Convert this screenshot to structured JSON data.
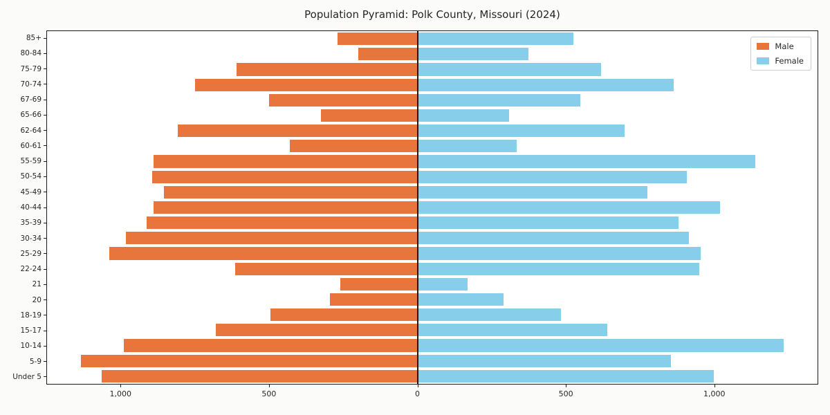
{
  "title": "Population Pyramid: Polk County, Missouri (2024)",
  "legend": {
    "male_label": "Male",
    "female_label": "Female",
    "position": "upper right"
  },
  "colors": {
    "male": "#e8763c",
    "female": "#87ceeb",
    "axis": "#1a1a1a",
    "plot_background": "#ffffff",
    "figure_background": "#fbfbfa"
  },
  "chart_data": {
    "type": "bar",
    "subtype": "population-pyramid-horizontal",
    "title": "Population Pyramid: Polk County, Missouri (2024)",
    "xlabel": "",
    "ylabel": "",
    "grid": false,
    "legend_position": "upper right",
    "categories_bottom_to_top": [
      "Under 5",
      "5-9",
      "10-14",
      "15-17",
      "18-19",
      "20",
      "21",
      "22-24",
      "25-29",
      "30-34",
      "35-39",
      "40-44",
      "45-49",
      "50-54",
      "55-59",
      "60-61",
      "62-64",
      "65-66",
      "67-69",
      "70-74",
      "75-79",
      "80-84",
      "85+"
    ],
    "series": [
      {
        "name": "Male",
        "direction": "left",
        "values": [
          1065,
          1135,
          990,
          680,
          495,
          295,
          260,
          615,
          1040,
          985,
          915,
          890,
          855,
          895,
          890,
          430,
          810,
          325,
          500,
          750,
          610,
          200,
          270
        ]
      },
      {
        "name": "Female",
        "direction": "right",
        "values": [
          1000,
          855,
          1235,
          640,
          485,
          290,
          170,
          950,
          955,
          915,
          880,
          1020,
          775,
          910,
          1140,
          335,
          700,
          310,
          550,
          865,
          620,
          375,
          525
        ]
      }
    ],
    "xlim": [
      -1250,
      1350
    ],
    "xticks": [
      {
        "value": -1000,
        "label": "1,000"
      },
      {
        "value": -500,
        "label": "500"
      },
      {
        "value": 0,
        "label": "0"
      },
      {
        "value": 500,
        "label": "500"
      },
      {
        "value": 1000,
        "label": "1,000"
      }
    ]
  }
}
